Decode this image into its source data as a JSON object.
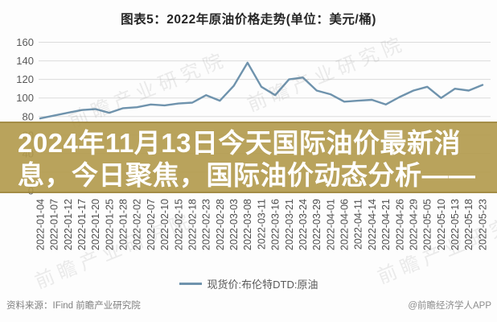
{
  "title": "图表5：2022年原油价格走势(单位：美元/桶)",
  "overlay": {
    "line1": "2024年11月13日今天国际油价最新消",
    "line2": "息，今日聚焦，国际油价动态分析——",
    "bg_color": "#b29a4c",
    "text_color": "#ffffff"
  },
  "legend": {
    "label": "现货价:布伦特DTD:原油"
  },
  "footer": {
    "source": "资料来源：IFind 前瞻产业研究院",
    "credit": "@前瞻经济学人APP"
  },
  "watermark": {
    "text": "前瞻产业研究院"
  },
  "chart_data": {
    "type": "line",
    "title": "图表5：2022年原油价格走势(单位：美元/桶)",
    "ylabel": "美元/桶",
    "xlabel": "",
    "ylim": [
      0,
      160
    ],
    "ytick_step": 20,
    "grid": true,
    "legend_position": "bottom",
    "axis_label_color": "#595959",
    "grid_color": "#dcdcdc",
    "categories": [
      "2022-01-04",
      "2022-01-07",
      "2022-01-12",
      "2022-01-17",
      "2022-01-20",
      "2022-01-25",
      "2022-01-28",
      "2022-02-02",
      "2022-02-07",
      "2022-02-10",
      "2022-02-15",
      "2022-02-18",
      "2022-02-23",
      "2022-02-28",
      "2022-03-03",
      "2022-03-08",
      "2022-03-11",
      "2022-03-16",
      "2022-03-21",
      "2022-03-24",
      "2022-03-29",
      "2022-04-01",
      "2022-04-06",
      "2022-04-11",
      "2022-04-14",
      "2022-04-21",
      "2022-04-26",
      "2022-04-29",
      "2022-05-05",
      "2022-05-10",
      "2022-05-13",
      "2022-05-18",
      "2022-05-23"
    ],
    "series": [
      {
        "name": "现货价:布伦特DTD:原油",
        "color": "#6f93ad",
        "values": [
          78,
          81,
          84,
          87,
          88,
          84,
          89,
          90,
          93,
          92,
          94,
          95,
          103,
          97,
          113,
          138,
          112,
          103,
          120,
          122,
          108,
          104,
          96,
          97,
          98,
          93,
          101,
          108,
          112,
          100,
          110,
          108,
          114
        ]
      }
    ]
  }
}
